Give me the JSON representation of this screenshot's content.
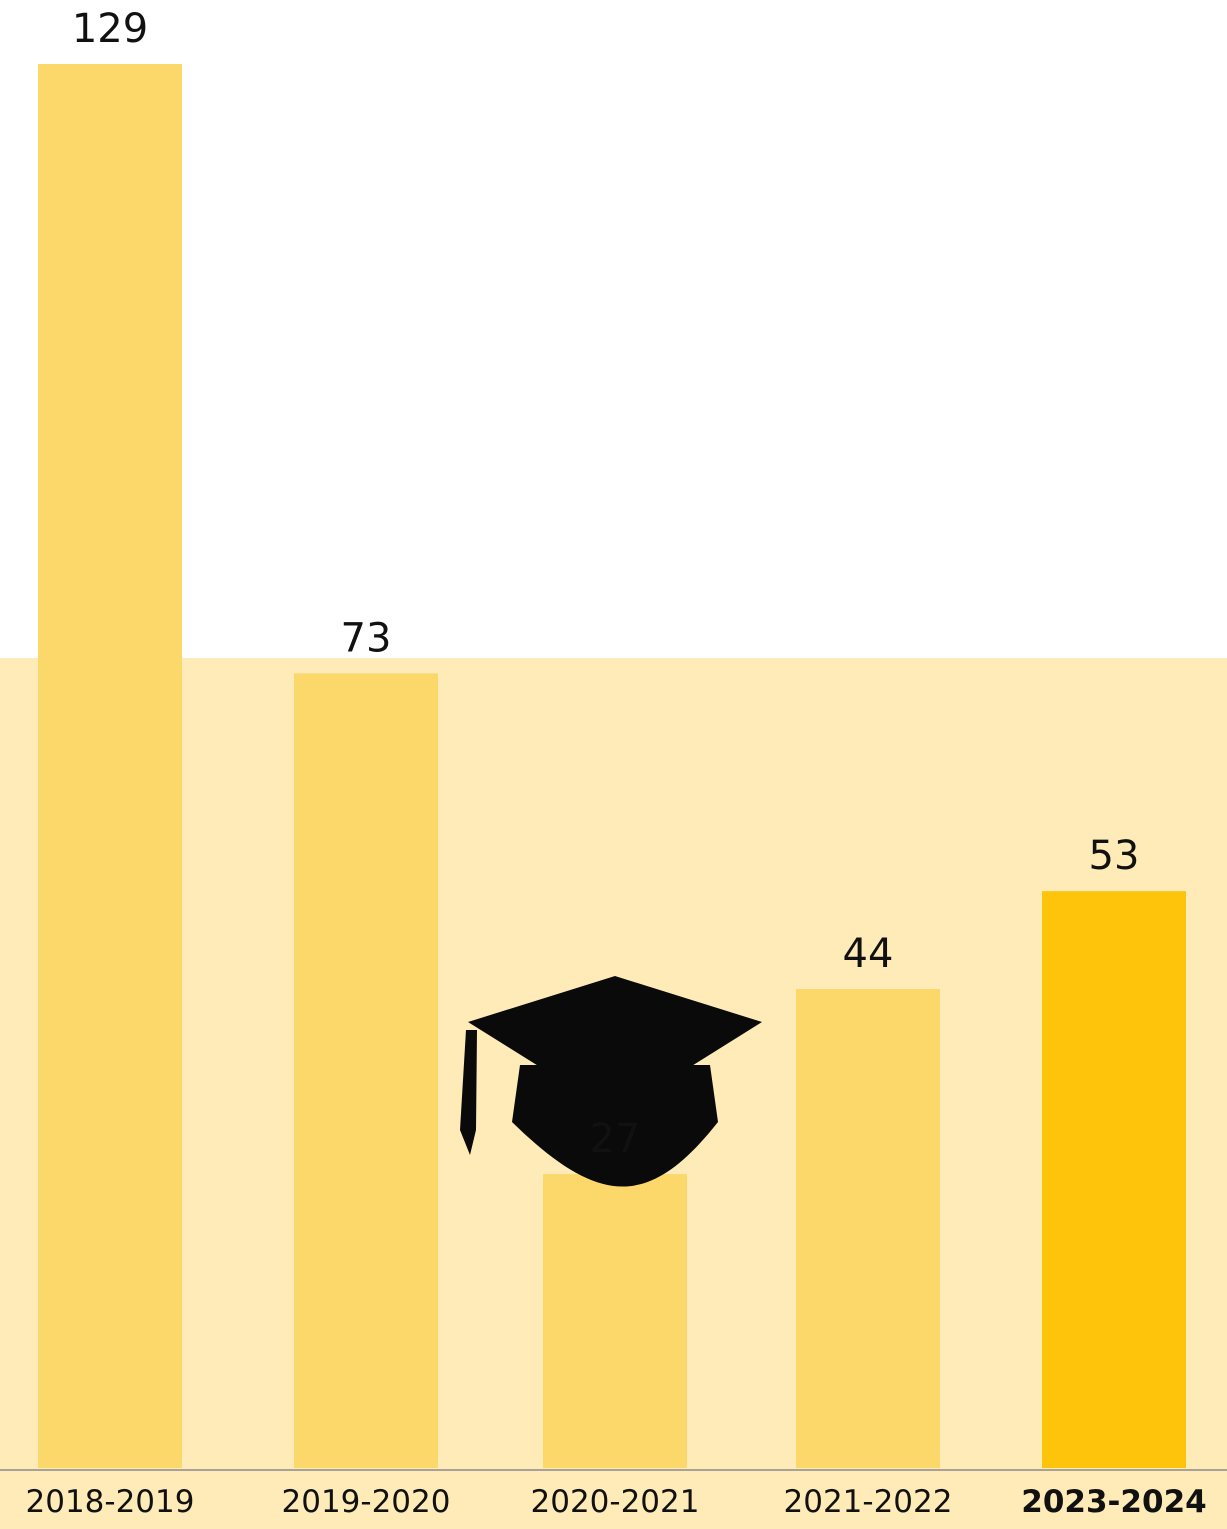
{
  "chart_data": {
    "type": "bar",
    "categories": [
      "2018-2019",
      "2019-2020",
      "2020-2021",
      "2021-2022",
      "2023-2024"
    ],
    "values": [
      129,
      73,
      27,
      44,
      53
    ],
    "highlight_index": 4,
    "ylim": [
      0,
      129
    ],
    "grid": false,
    "legend": "none",
    "title": "",
    "xlabel": "",
    "ylabel": ""
  },
  "colors": {
    "background_band": "#FEEBB7",
    "bar": "#FCD769",
    "bar_highlight": "#FDC40B",
    "baseline": "#8A8A8A",
    "icon": "#0A0A0A"
  },
  "icon": "graduation-cap-icon"
}
